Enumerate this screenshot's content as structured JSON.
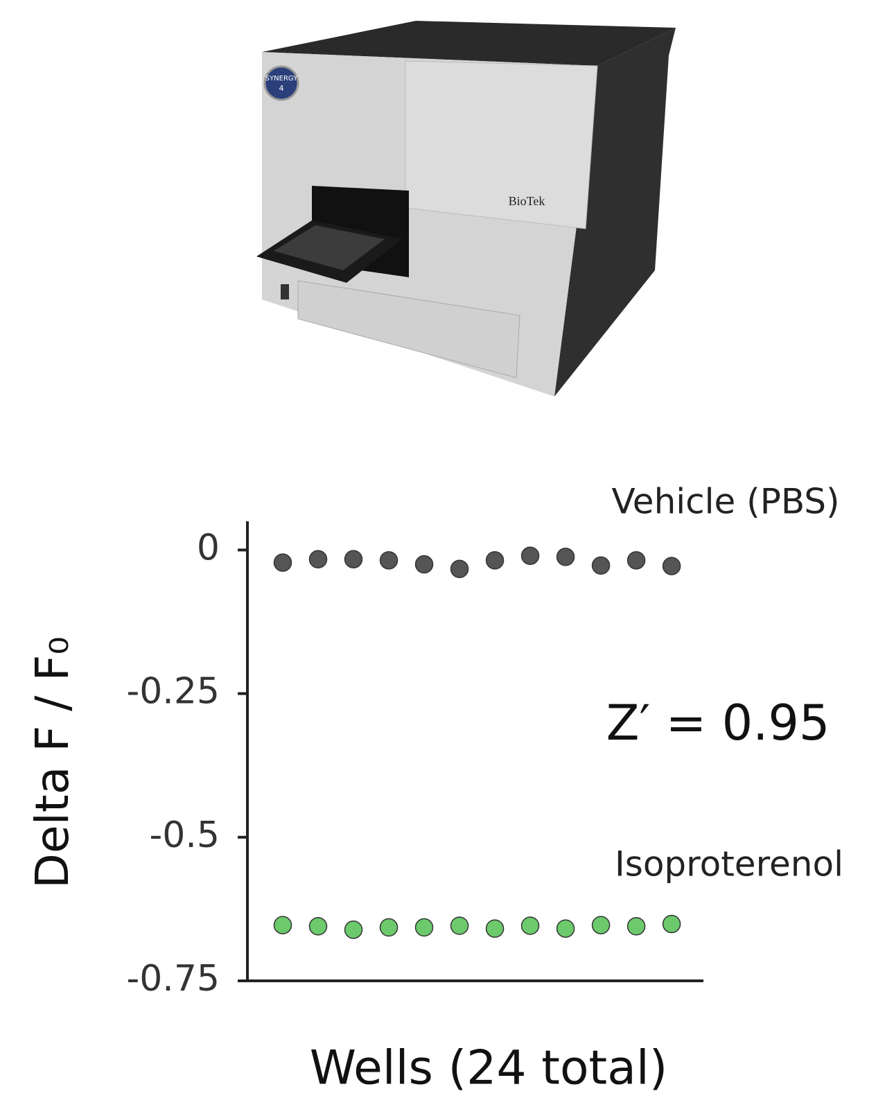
{
  "photo": {
    "badge": "SYNERGY",
    "model": "4",
    "brand": "BioTek"
  },
  "chart_data": {
    "type": "scatter",
    "ylabel": "Delta F / F₀",
    "xlabel": "Wells (24 total)",
    "annotations": [
      "Vehicle (PBS)",
      "Isoproterenol",
      "Z′ = 0.95"
    ],
    "x": [
      1,
      2,
      3,
      4,
      5,
      6,
      7,
      8,
      9,
      10,
      11,
      12
    ],
    "xlim": [
      0,
      12.9
    ],
    "ylim": [
      -0.75,
      0.05
    ],
    "yticks": [
      0,
      -0.25,
      -0.5,
      -0.75
    ],
    "series": [
      {
        "name": "Vehicle (PBS)",
        "color": "#555555",
        "values": [
          -0.022,
          -0.016,
          -0.016,
          -0.018,
          -0.025,
          -0.033,
          -0.018,
          -0.01,
          -0.012,
          -0.027,
          -0.018,
          -0.028
        ]
      },
      {
        "name": "Isoproterenol",
        "color": "#6cc96c",
        "values": [
          -0.653,
          -0.655,
          -0.661,
          -0.657,
          -0.657,
          -0.654,
          -0.659,
          -0.654,
          -0.659,
          -0.653,
          -0.655,
          -0.651
        ]
      }
    ]
  }
}
